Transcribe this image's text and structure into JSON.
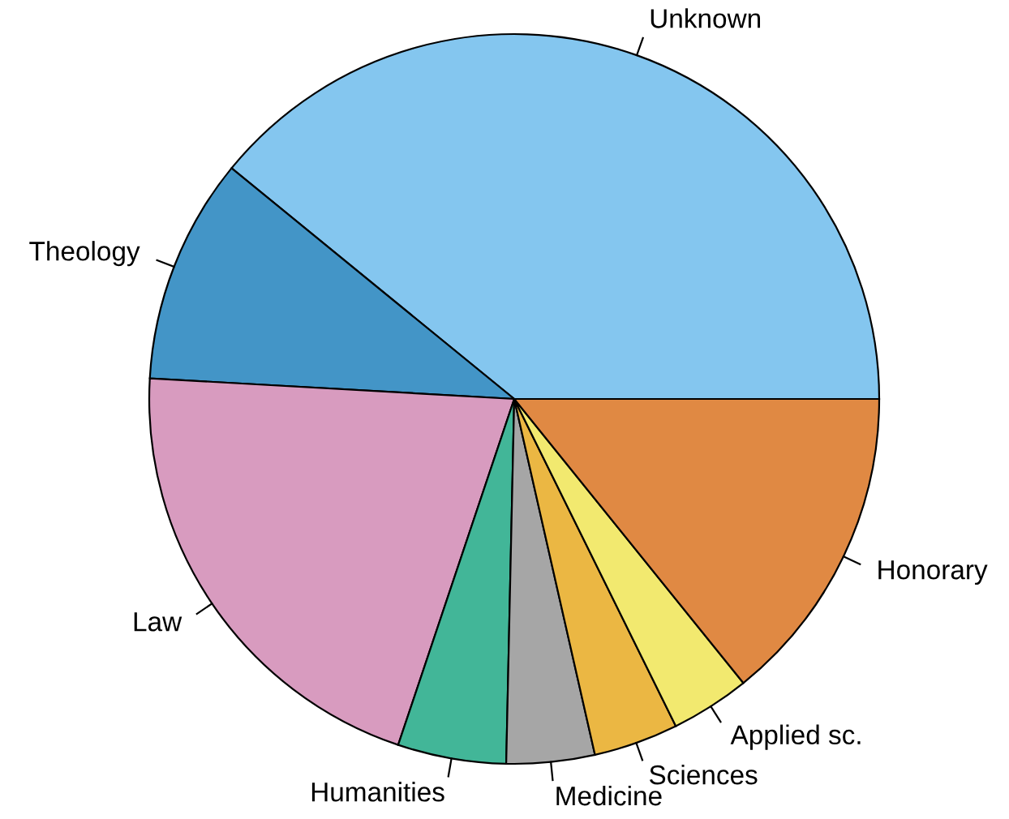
{
  "chart_data": {
    "type": "pie",
    "categories": [
      "Unknown",
      "Theology",
      "Law",
      "Humanities",
      "Medicine",
      "Sciences",
      "Applied sc.",
      "Honorary"
    ],
    "values": [
      39.1,
      10,
      20.75,
      4.8,
      3.9,
      3.75,
      3.5,
      14.2
    ],
    "colors": [
      "#84c6ef",
      "#4395c7",
      "#d89bbf",
      "#42b698",
      "#a6a6a6",
      "#ebb743",
      "#f2e96f",
      "#e08943"
    ]
  }
}
